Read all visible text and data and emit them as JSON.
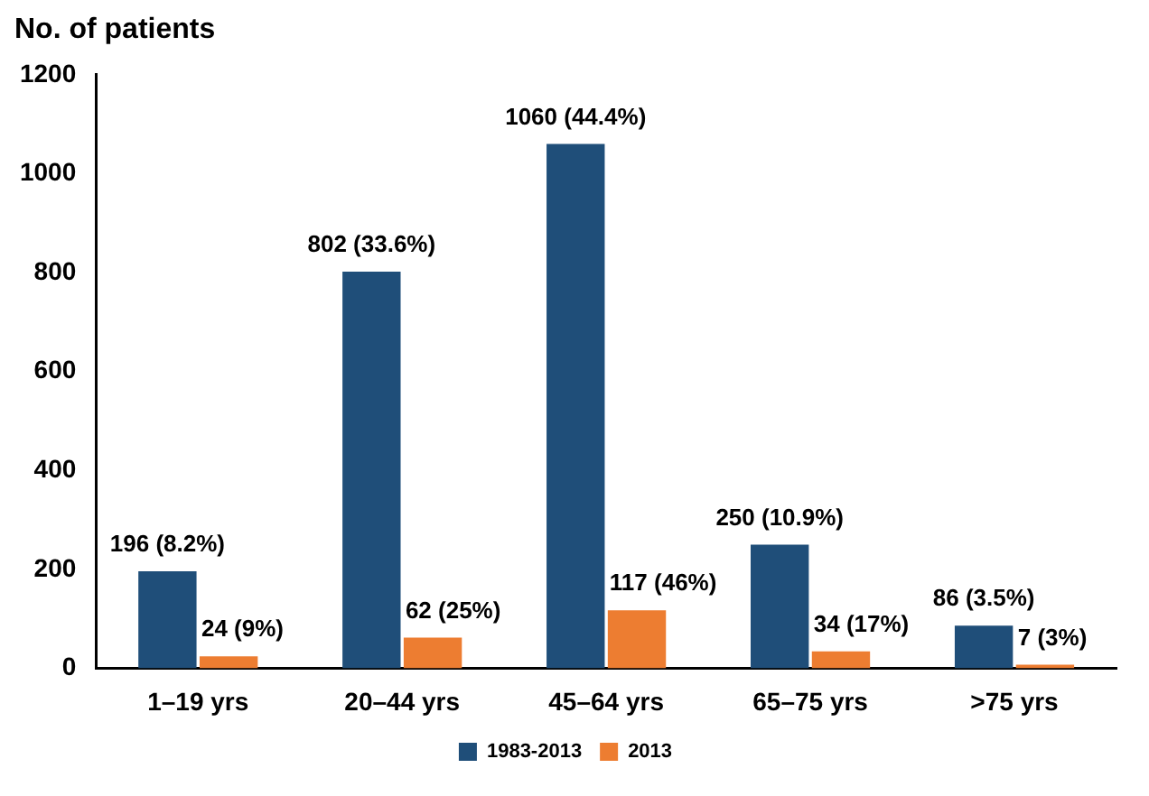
{
  "chart_data": {
    "type": "bar",
    "ylabel": "No. of patients",
    "categories": [
      "1–19 yrs",
      "20–44 yrs",
      "45–64 yrs",
      "65–75 yrs",
      ">75 yrs"
    ],
    "series": [
      {
        "name": "1983-2013",
        "color": "#1f4e79",
        "values": [
          196,
          802,
          1060,
          250,
          86
        ],
        "value_labels": [
          "196 (8.2%)",
          "802 (33.6%)",
          "1060 (44.4%)",
          "250 (10.9%)",
          "86 (3.5%)"
        ]
      },
      {
        "name": "2013",
        "color": "#ed7d31",
        "values": [
          24,
          62,
          117,
          34,
          7
        ],
        "value_labels": [
          "24 (9%)",
          "62 (25%)",
          "117 (46%)",
          "34 (17%)",
          "7 (3%)"
        ]
      }
    ],
    "ylim": [
      0,
      1200
    ],
    "yticks": [
      0,
      200,
      400,
      600,
      800,
      1000,
      1200
    ],
    "grid": false,
    "legend": "bottom"
  }
}
